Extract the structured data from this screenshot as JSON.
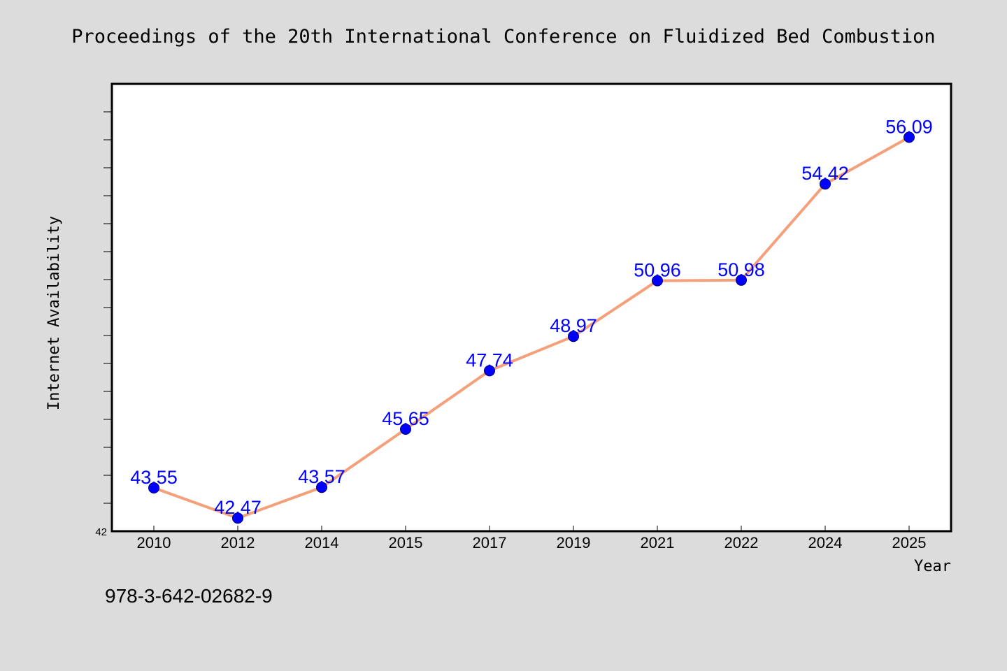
{
  "title": "Proceedings of the 20th International Conference on Fluidized Bed Combustion",
  "footer": "978-3-642-02682-9",
  "chart_data": {
    "type": "line",
    "title": "Proceedings of the 20th International Conference on Fluidized Bed Combustion",
    "xlabel": "Year",
    "ylabel": "Internet Availability",
    "categories": [
      "2010",
      "2012",
      "2014",
      "2015",
      "2017",
      "2019",
      "2021",
      "2022",
      "2024",
      "2025"
    ],
    "series": [
      {
        "values": [
          43.55,
          42.47,
          43.57,
          45.65,
          47.74,
          48.97,
          50.96,
          50.98,
          54.42,
          56.09
        ]
      }
    ],
    "data_labels": [
      "43.55",
      "42.47",
      "43.57",
      "45.65",
      "47.74",
      "48.97",
      "50.96",
      "50.98",
      "54.42",
      "56.09"
    ],
    "ylim": [
      42,
      58
    ],
    "y_tick_labels": [
      "42"
    ],
    "grid": false,
    "legend": "none",
    "colors": {
      "line": "#f4a07a",
      "marker": "#0000ff",
      "data_label": "#0000ff",
      "plot_background": "#ffffff",
      "page_background": "#dcdcdc"
    }
  }
}
